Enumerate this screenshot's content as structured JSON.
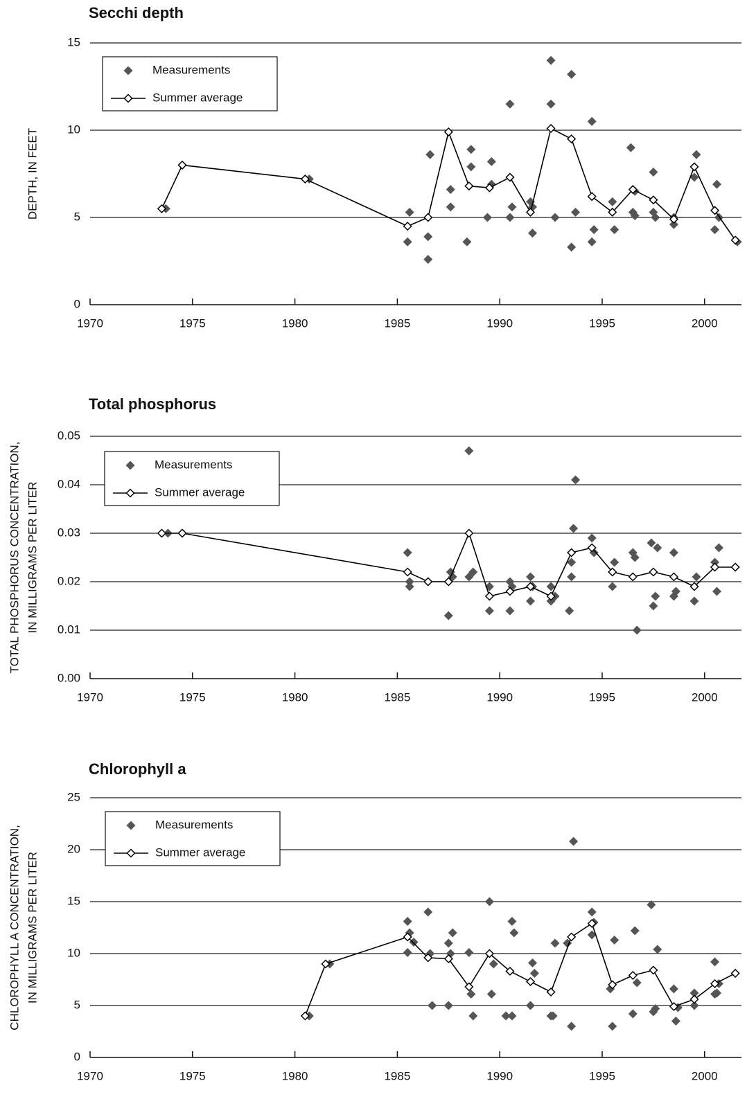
{
  "chart_data": [
    {
      "type": "line",
      "title": "Secchi depth",
      "ylabel": [
        "DEPTH, IN FEET"
      ],
      "xlim": [
        1970,
        2001.8
      ],
      "xticks": [
        1970,
        1975,
        1980,
        1985,
        1990,
        1995,
        2000
      ],
      "ylim": [
        0,
        15
      ],
      "yticks": [
        0,
        5,
        10,
        15
      ],
      "grid": true,
      "legend": "upper left",
      "series": [
        {
          "name": "Measurements",
          "type": "scatter",
          "color": "#555555",
          "x": [
            1973.7,
            1974.5,
            1980.7,
            1985.5,
            1985.6,
            1986.5,
            1986.5,
            1986.6,
            1987.6,
            1987.6,
            1988.4,
            1988.6,
            1988.6,
            1989.4,
            1989.6,
            1989.6,
            1990.5,
            1990.5,
            1990.6,
            1991.5,
            1991.6,
            1991.6,
            1992.5,
            1992.5,
            1992.7,
            1993.5,
            1993.5,
            1993.7,
            1994.5,
            1994.5,
            1994.6,
            1995.5,
            1995.6,
            1996.4,
            1996.5,
            1996.6,
            1996.6,
            1997.5,
            1997.5,
            1997.6,
            1998.5,
            1998.5,
            1999.5,
            1999.6,
            2000.5,
            2000.6,
            2000.7,
            2001.6
          ],
          "values": [
            5.5,
            8.0,
            7.2,
            3.6,
            5.3,
            3.9,
            2.6,
            8.6,
            5.6,
            6.6,
            3.6,
            7.9,
            8.9,
            5.0,
            8.2,
            6.9,
            11.5,
            5.0,
            5.6,
            5.9,
            4.1,
            5.6,
            14.0,
            11.5,
            5.0,
            13.2,
            3.3,
            5.3,
            10.5,
            3.6,
            4.3,
            5.9,
            4.3,
            9.0,
            5.3,
            5.1,
            6.5,
            7.6,
            5.3,
            5.0,
            4.6,
            5.0,
            7.3,
            8.6,
            4.3,
            6.9,
            5.0,
            3.6
          ]
        },
        {
          "name": "Summer average",
          "type": "line",
          "color": "#000000",
          "x": [
            1973.5,
            1974.5,
            1980.5,
            1985.5,
            1986.5,
            1987.5,
            1988.5,
            1989.5,
            1990.5,
            1991.5,
            1992.5,
            1993.5,
            1994.5,
            1995.5,
            1996.5,
            1997.5,
            1998.5,
            1999.5,
            2000.5,
            2001.5
          ],
          "values": [
            5.5,
            8.0,
            7.2,
            4.5,
            5.0,
            9.9,
            6.8,
            6.7,
            7.3,
            5.3,
            10.1,
            9.5,
            6.2,
            5.3,
            6.6,
            6.0,
            4.9,
            7.9,
            5.4,
            3.7
          ]
        }
      ]
    },
    {
      "type": "line",
      "title": "Total phosphorus",
      "ylabel": [
        "TOTAL PHOSPHORUS CONCENTRATION,",
        "IN MILLIGRAMS PER LITER"
      ],
      "xlim": [
        1970,
        2001.8
      ],
      "xticks": [
        1970,
        1975,
        1980,
        1985,
        1990,
        1995,
        2000
      ],
      "ylim": [
        0,
        0.05
      ],
      "yticks": [
        {
          "value": 0,
          "label": "0.00"
        },
        0.01,
        0.02,
        0.03,
        0.04,
        0.05
      ],
      "grid": true,
      "legend": "upper left",
      "series": [
        {
          "name": "Measurements",
          "type": "scatter",
          "color": "#555555",
          "x": [
            1973.8,
            1974.5,
            1985.5,
            1985.6,
            1985.6,
            1986.5,
            1987.5,
            1987.6,
            1987.7,
            1988.5,
            1988.5,
            1988.7,
            1989.5,
            1989.5,
            1990.5,
            1990.5,
            1990.6,
            1991.5,
            1991.5,
            1991.6,
            1992.5,
            1992.5,
            1992.7,
            1993.4,
            1993.5,
            1993.5,
            1993.6,
            1993.7,
            1994.5,
            1994.6,
            1995.5,
            1995.6,
            1995.5,
            1996.5,
            1996.6,
            1996.7,
            1997.4,
            1997.5,
            1997.6,
            1997.7,
            1998.5,
            1998.5,
            1998.6,
            1999.5,
            1999.6,
            2000.5,
            2000.6,
            2000.7,
            2001.5
          ],
          "values": [
            0.03,
            0.03,
            0.026,
            0.02,
            0.019,
            0.02,
            0.013,
            0.022,
            0.021,
            0.047,
            0.021,
            0.022,
            0.019,
            0.014,
            0.02,
            0.014,
            0.019,
            0.021,
            0.016,
            0.019,
            0.019,
            0.016,
            0.017,
            0.014,
            0.021,
            0.024,
            0.031,
            0.041,
            0.029,
            0.026,
            0.019,
            0.024,
            0.022,
            0.026,
            0.025,
            0.01,
            0.028,
            0.015,
            0.017,
            0.027,
            0.026,
            0.017,
            0.018,
            0.016,
            0.021,
            0.024,
            0.018,
            0.027,
            0.023
          ]
        },
        {
          "name": "Summer average",
          "type": "line",
          "color": "#000000",
          "x": [
            1973.5,
            1974.5,
            1985.5,
            1986.5,
            1987.5,
            1988.5,
            1989.5,
            1990.5,
            1991.5,
            1992.5,
            1993.5,
            1994.5,
            1995.5,
            1996.5,
            1997.5,
            1998.5,
            1999.5,
            2000.5,
            2001.5
          ],
          "values": [
            0.03,
            0.03,
            0.022,
            0.02,
            0.02,
            0.03,
            0.017,
            0.018,
            0.019,
            0.017,
            0.026,
            0.027,
            0.022,
            0.021,
            0.022,
            0.021,
            0.019,
            0.023,
            0.023
          ]
        }
      ]
    },
    {
      "type": "line",
      "title": "Chlorophyll a",
      "ylabel": [
        "CHLOROPHYLL A CONCENTRATION,",
        "IN MILLIGRAMS PER LITER"
      ],
      "xlim": [
        1970,
        2001.8
      ],
      "xticks": [
        1970,
        1975,
        1980,
        1985,
        1990,
        1995,
        2000
      ],
      "ylim": [
        0,
        25
      ],
      "yticks": [
        0,
        5,
        10,
        15,
        20,
        25
      ],
      "grid": true,
      "legend": "upper left",
      "series": [
        {
          "name": "Measurements",
          "type": "scatter",
          "color": "#555555",
          "x": [
            1980.7,
            1981.7,
            1985.5,
            1985.5,
            1985.6,
            1985.8,
            1986.5,
            1986.6,
            1986.7,
            1987.5,
            1987.5,
            1987.6,
            1987.7,
            1988.5,
            1988.6,
            1988.7,
            1989.5,
            1989.6,
            1989.7,
            1990.3,
            1990.6,
            1990.6,
            1990.7,
            1991.5,
            1991.6,
            1991.7,
            1992.5,
            1992.6,
            1992.7,
            1993.3,
            1993.5,
            1993.6,
            1994.5,
            1994.5,
            1994.6,
            1995.4,
            1995.5,
            1995.6,
            1996.5,
            1996.6,
            1996.7,
            1997.4,
            1997.5,
            1997.6,
            1997.7,
            1998.5,
            1998.6,
            1998.7,
            1999.5,
            1999.5,
            2000.5,
            2000.5,
            2000.7,
            2000.6,
            2001.5
          ],
          "values": [
            4.0,
            9.0,
            13.1,
            10.1,
            12.0,
            11.1,
            14.0,
            10.0,
            5.0,
            11.0,
            5.0,
            10.0,
            12.0,
            10.1,
            6.1,
            4.0,
            15.0,
            6.1,
            9.0,
            4.0,
            4.0,
            13.1,
            12.0,
            5.0,
            9.1,
            8.1,
            4.0,
            4.0,
            11.0,
            11.0,
            3.0,
            20.8,
            14.0,
            11.8,
            13.0,
            6.6,
            3.0,
            11.3,
            4.2,
            12.2,
            7.2,
            14.7,
            4.4,
            4.7,
            10.4,
            6.6,
            3.5,
            4.8,
            5.0,
            6.2,
            9.2,
            6.1,
            7.1,
            6.2,
            8.1
          ]
        },
        {
          "name": "Summer average",
          "type": "line",
          "color": "#000000",
          "x": [
            1980.5,
            1981.5,
            1985.5,
            1986.5,
            1987.5,
            1988.5,
            1989.5,
            1990.5,
            1991.5,
            1992.5,
            1993.5,
            1994.5,
            1995.5,
            1996.5,
            1997.5,
            1998.5,
            1999.5,
            2000.5,
            2001.5
          ],
          "values": [
            4.0,
            9.0,
            11.6,
            9.6,
            9.5,
            6.8,
            10.0,
            8.3,
            7.3,
            6.3,
            11.6,
            12.9,
            7.0,
            7.9,
            8.4,
            4.9,
            5.6,
            7.1,
            8.1
          ]
        }
      ]
    }
  ]
}
